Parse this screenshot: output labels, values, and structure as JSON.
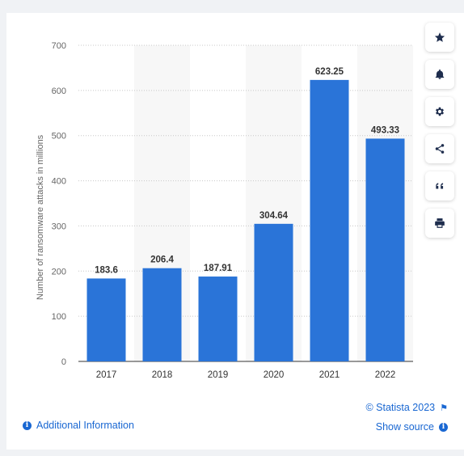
{
  "chart_data": {
    "type": "bar",
    "categories": [
      "2017",
      "2018",
      "2019",
      "2020",
      "2021",
      "2022"
    ],
    "values": [
      183.6,
      206.4,
      187.91,
      304.64,
      623.25,
      493.33
    ],
    "data_labels": [
      "183.6",
      "206.4",
      "187.91",
      "304.64",
      "623.25",
      "493.33"
    ],
    "ylabel": "Number of ransomware attacks in millions",
    "xlabel": "",
    "ylim": [
      0,
      700
    ],
    "yticks": [
      0,
      100,
      200,
      300,
      400,
      500,
      600,
      700
    ],
    "grid": true,
    "bar_color": "#2a74d8"
  },
  "sidebar": {
    "buttons": [
      {
        "name": "favorite",
        "icon": "star-icon"
      },
      {
        "name": "notification",
        "icon": "bell-icon"
      },
      {
        "name": "settings",
        "icon": "gear-icon"
      },
      {
        "name": "share",
        "icon": "share-icon"
      },
      {
        "name": "cite",
        "icon": "quote-icon"
      },
      {
        "name": "print",
        "icon": "print-icon"
      }
    ]
  },
  "footer": {
    "additional_info": "Additional Information",
    "copyright": "© Statista 2023",
    "show_source": "Show source"
  },
  "colors": {
    "accent": "#1967d2",
    "bar": "#2a74d8"
  }
}
